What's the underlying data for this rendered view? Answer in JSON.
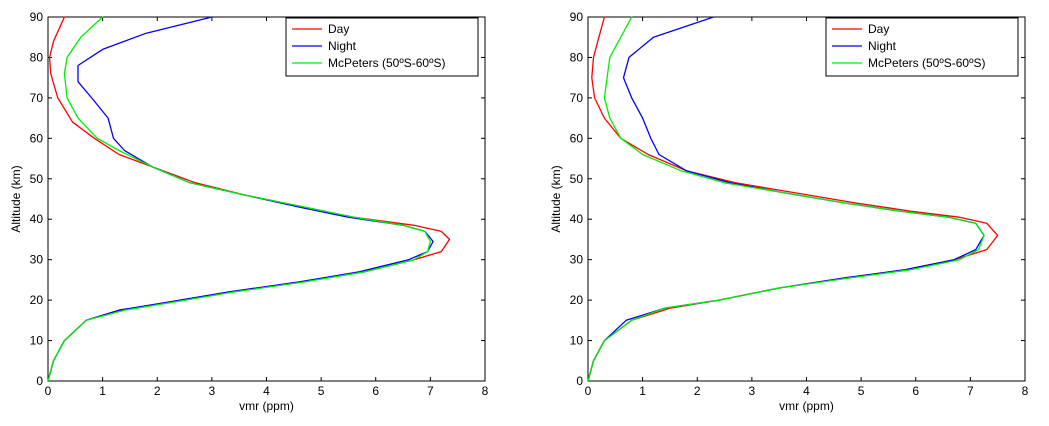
{
  "chart_data": [
    {
      "type": "line",
      "xlabel": "vmr (ppm)",
      "ylabel": "Altitude (km)",
      "xlim": [
        0,
        8
      ],
      "ylim": [
        0,
        90
      ],
      "xticks": [
        0,
        1,
        2,
        3,
        4,
        5,
        6,
        7,
        8
      ],
      "yticks": [
        0,
        10,
        20,
        30,
        40,
        50,
        60,
        70,
        80,
        90
      ],
      "legend_position": "top-right",
      "grid": false,
      "series": [
        {
          "name": "Day",
          "color": "#ff0000",
          "x": [
            0.0,
            0.1,
            0.3,
            0.7,
            1.3,
            2.2,
            3.3,
            4.6,
            5.8,
            6.7,
            7.2,
            7.35,
            7.2,
            6.7,
            5.6,
            4.7,
            3.6,
            2.7,
            1.9,
            1.3,
            0.85,
            0.45,
            0.18,
            0.05,
            0.03,
            0.1,
            0.3
          ],
          "y": [
            0,
            5,
            10,
            15,
            17.5,
            19.5,
            22,
            24.5,
            27,
            30,
            32,
            35,
            37,
            38.5,
            40.5,
            43,
            46,
            49,
            53,
            56,
            60,
            64,
            70,
            76,
            80,
            84,
            90
          ]
        },
        {
          "name": "Night",
          "color": "#0000ff",
          "x": [
            0.0,
            0.1,
            0.3,
            0.7,
            1.3,
            2.2,
            3.3,
            4.6,
            5.7,
            6.6,
            6.95,
            7.05,
            6.9,
            6.5,
            5.5,
            4.6,
            3.6,
            2.6,
            1.9,
            1.4,
            1.2,
            1.1,
            0.8,
            0.55,
            0.55,
            1.0,
            1.8,
            3.0
          ],
          "y": [
            0,
            5,
            10,
            15,
            17.5,
            19.5,
            22,
            24.5,
            27,
            30,
            32,
            34.5,
            37,
            38.5,
            40.5,
            43,
            46,
            49,
            53,
            57,
            60,
            65,
            70,
            74,
            78,
            82,
            86,
            90
          ]
        },
        {
          "name": "McPeters (50ºS-60ºS)",
          "color": "#00ee00",
          "x": [
            0.0,
            0.1,
            0.3,
            0.7,
            1.4,
            2.3,
            3.4,
            4.7,
            5.8,
            6.7,
            6.95,
            7.0,
            6.9,
            6.5,
            5.6,
            4.7,
            3.6,
            2.6,
            1.9,
            1.3,
            0.9,
            0.55,
            0.35,
            0.3,
            0.35,
            0.6,
            1.0
          ],
          "y": [
            0,
            5,
            10,
            15,
            17.5,
            19.5,
            22,
            24.5,
            27,
            30,
            32,
            34.5,
            37,
            38.5,
            40.5,
            43,
            46,
            49,
            53,
            57,
            60,
            65,
            70,
            76,
            80,
            85,
            90
          ]
        }
      ]
    },
    {
      "type": "line",
      "xlabel": "vmr (ppm)",
      "ylabel": "Altitude (km)",
      "xlim": [
        0,
        8
      ],
      "ylim": [
        0,
        90
      ],
      "xticks": [
        0,
        1,
        2,
        3,
        4,
        5,
        6,
        7,
        8
      ],
      "yticks": [
        0,
        10,
        20,
        30,
        40,
        50,
        60,
        70,
        80,
        90
      ],
      "legend_position": "top-right",
      "grid": false,
      "series": [
        {
          "name": "Day",
          "color": "#ff0000",
          "x": [
            0.0,
            0.1,
            0.3,
            0.8,
            1.5,
            2.4,
            3.5,
            4.7,
            5.8,
            6.7,
            7.3,
            7.5,
            7.3,
            6.8,
            5.9,
            4.9,
            3.8,
            2.7,
            1.8,
            1.1,
            0.6,
            0.3,
            0.12,
            0.07,
            0.1,
            0.2,
            0.3
          ],
          "y": [
            0,
            5,
            10,
            15,
            18,
            20,
            23,
            25.5,
            27.5,
            30,
            32.5,
            36,
            39,
            40.5,
            42,
            44,
            46.5,
            49,
            52,
            56,
            60,
            65,
            70,
            75,
            80,
            85,
            90
          ]
        },
        {
          "name": "Night",
          "color": "#0000ff",
          "x": [
            0.0,
            0.1,
            0.3,
            0.7,
            1.4,
            2.4,
            3.5,
            4.7,
            5.8,
            6.7,
            7.1,
            7.25,
            7.1,
            6.6,
            5.7,
            4.7,
            3.6,
            2.6,
            1.8,
            1.3,
            1.15,
            1.0,
            0.8,
            0.65,
            0.75,
            1.2,
            2.3
          ],
          "y": [
            0,
            5,
            10,
            15,
            18,
            20,
            23,
            25.5,
            27.5,
            30,
            32.5,
            36,
            39,
            40.5,
            42,
            44,
            46.5,
            49,
            52,
            56,
            60,
            65,
            70,
            75,
            80,
            85,
            90
          ]
        },
        {
          "name": "McPeters (50ºS-60ºS)",
          "color": "#00ee00",
          "x": [
            0.0,
            0.1,
            0.3,
            0.8,
            1.4,
            2.4,
            3.5,
            4.8,
            5.9,
            6.8,
            7.15,
            7.25,
            7.1,
            6.6,
            5.7,
            4.7,
            3.6,
            2.5,
            1.7,
            1.0,
            0.6,
            0.4,
            0.3,
            0.35,
            0.4,
            0.6,
            0.8
          ],
          "y": [
            0,
            5,
            10,
            15,
            18,
            20,
            23,
            25.5,
            27.5,
            30,
            32.5,
            36,
            39,
            40.5,
            42,
            44,
            46.5,
            49,
            52,
            56,
            60,
            65,
            70,
            75,
            80,
            85,
            90
          ]
        }
      ]
    }
  ]
}
